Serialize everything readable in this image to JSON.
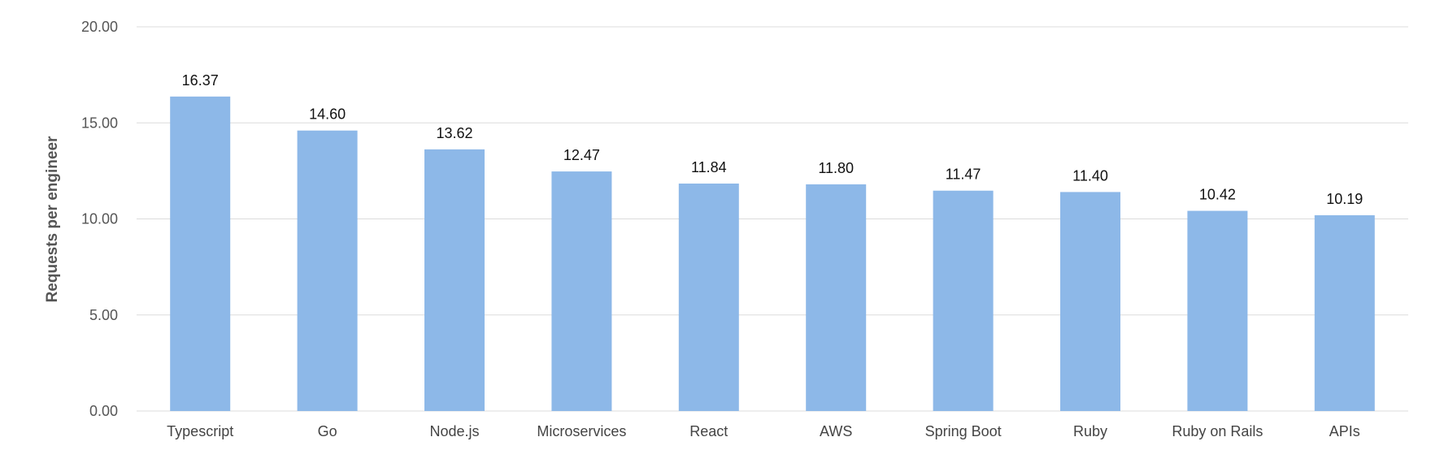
{
  "chart_data": {
    "type": "bar",
    "categories": [
      "Typescript",
      "Go",
      "Node.js",
      "Microservices",
      "React",
      "AWS",
      "Spring Boot",
      "Ruby",
      "Ruby on Rails",
      "APIs"
    ],
    "values": [
      16.37,
      14.6,
      13.62,
      12.47,
      11.84,
      11.8,
      11.47,
      11.4,
      10.42,
      10.19
    ],
    "value_labels": [
      "16.37",
      "14.60",
      "13.62",
      "12.47",
      "11.84",
      "11.80",
      "11.47",
      "11.40",
      "10.42",
      "10.19"
    ],
    "ylabel": "Requests per engineer",
    "ylim": [
      0,
      20
    ],
    "yticks": [
      "0.00",
      "5.00",
      "10.00",
      "15.00",
      "20.00"
    ],
    "ytick_values": [
      0,
      5,
      10,
      15,
      20
    ],
    "grid": true,
    "bar_color": "#8db8e8"
  }
}
